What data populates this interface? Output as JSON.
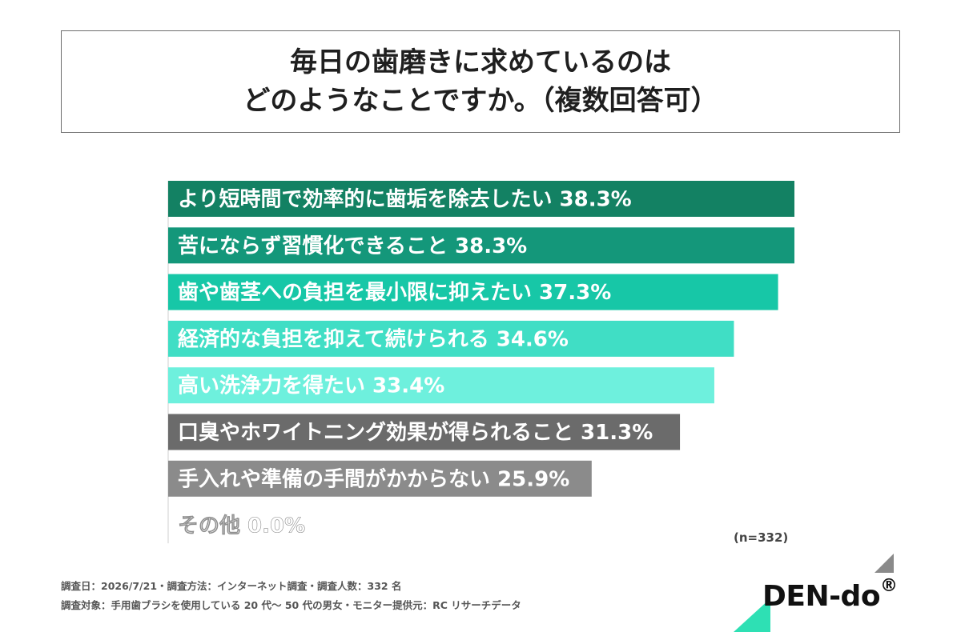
{
  "title": {
    "line1": "毎日の歯磨きに求めているのは",
    "line2": "どのようなことですか。（複数回答可）"
  },
  "chart_data": {
    "type": "bar",
    "orientation": "horizontal",
    "xlim": [
      0,
      38.3
    ],
    "grid": false,
    "categories": [
      "より短時間で効率的に歯垢を除去したい",
      "苦にならず習慣化できること",
      "歯や歯茎への負担を最小限に抑えたい",
      "経済的な負担を抑えて続けられる",
      "高い洗浄力を得たい",
      "口臭やホワイトニング効果が得られること",
      "手入れや準備の手間がかからない",
      "その他"
    ],
    "values": [
      38.3,
      38.3,
      37.3,
      34.6,
      33.4,
      31.3,
      25.9,
      0.0
    ],
    "value_labels": [
      "38.3%",
      "38.3%",
      "37.3%",
      "34.6%",
      "33.4%",
      "31.3%",
      "25.9%",
      "0.0%"
    ],
    "colors": [
      "#138163",
      "#14977a",
      "#17c7a7",
      "#40dec5",
      "#6ef0dd",
      "#6b6b6b",
      "#8b8b8b",
      "#b5b5b5"
    ],
    "label_colors": [
      "#ffffff",
      "#ffffff",
      "#ffffff",
      "#ffffff",
      "#ffffff",
      "#ffffff",
      "#ffffff",
      "#9a9a9a"
    ],
    "sample_size": "(n=332)"
  },
  "footnotes": {
    "line1": "調査日：2026/7/21・調査方法：インターネット調査・調査人数：332 名",
    "line2": "調査対象：手用歯ブラシを使用している 20 代〜 50 代の男女・モニター提供元：RC リサーチデータ"
  },
  "logo": {
    "text": "DEN-do",
    "mark": "®",
    "accent_top": "#8a8a8a",
    "accent_bottom": "#2ee0b4"
  }
}
